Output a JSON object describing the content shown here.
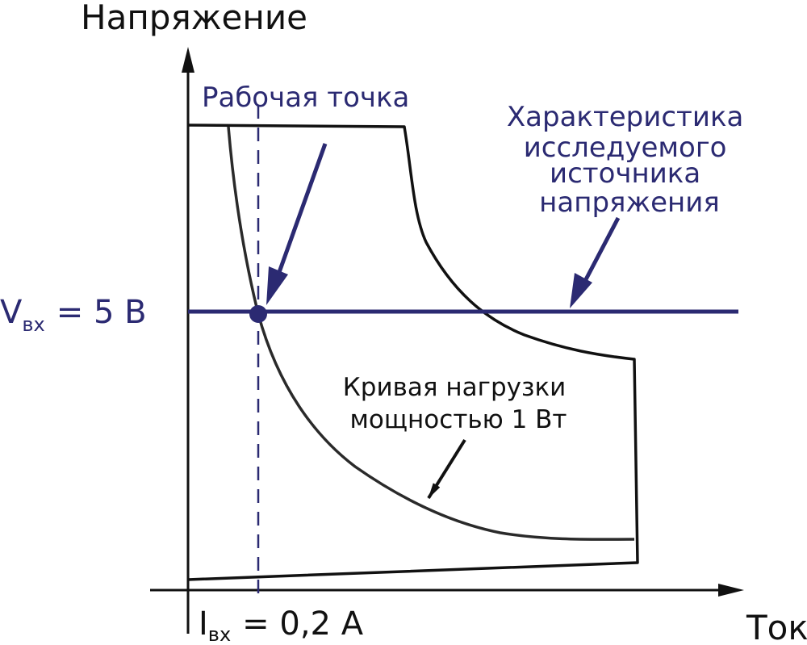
{
  "labels": {
    "y_axis": "Напряжение",
    "x_axis": "Ток",
    "operating_point": "Рабочая точка",
    "source_characteristic": [
      "Характеристика",
      "исследуемого",
      "источника",
      "напряжения"
    ],
    "load_curve": [
      "Кривая нагрузки",
      "мощностью 1 Вт"
    ],
    "v_in": {
      "symbol": "V",
      "subscript": "вх",
      "value": "= 5 В"
    },
    "i_in": {
      "symbol": "I",
      "subscript": "вх",
      "value": "= 0,2 А"
    }
  },
  "colors": {
    "blue": "#2b2a72",
    "black": "#111111",
    "curve": "#2a2a2a"
  }
}
